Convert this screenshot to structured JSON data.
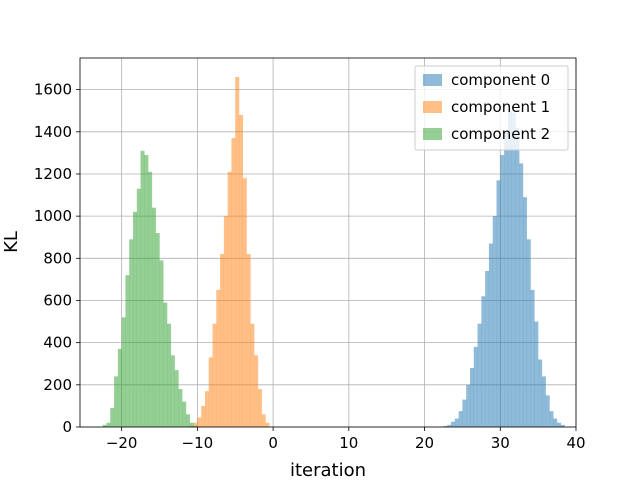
{
  "chart_data": {
    "type": "bar",
    "subtype": "histogram",
    "xlabel": "iteration",
    "ylabel": "KL",
    "xlim": [
      -25.5,
      40
    ],
    "ylim": [
      0,
      1750
    ],
    "xticks": [
      -20,
      -10,
      0,
      10,
      20,
      30,
      40
    ],
    "xtick_labels": [
      "−20",
      "−10",
      "0",
      "10",
      "20",
      "30",
      "40"
    ],
    "yticks": [
      0,
      200,
      400,
      600,
      800,
      1000,
      1200,
      1400,
      1600
    ],
    "ytick_labels": [
      "0",
      "200",
      "400",
      "600",
      "800",
      "1000",
      "1200",
      "1400",
      "1600"
    ],
    "grid": true,
    "legend": "top-right",
    "opacity": 0.5,
    "series": [
      {
        "name": "component 0",
        "color": "#1f77b4",
        "bin_start": 22.5,
        "bin_width": 0.5,
        "values": [
          5,
          10,
          25,
          40,
          75,
          130,
          200,
          280,
          380,
          490,
          620,
          740,
          870,
          1000,
          1170,
          1290,
          1400,
          1500,
          1490,
          1420,
          1250,
          1090,
          890,
          650,
          500,
          320,
          240,
          150,
          75,
          40,
          20,
          10
        ]
      },
      {
        "name": "component 1",
        "color": "#ff7f0e",
        "bin_start": -11,
        "bin_width": 0.5,
        "values": [
          5,
          20,
          45,
          100,
          170,
          330,
          490,
          650,
          820,
          1000,
          1210,
          1370,
          1660,
          1480,
          1180,
          820,
          490,
          340,
          180,
          60,
          20
        ]
      },
      {
        "name": "component 2",
        "color": "#2ca02c",
        "bin_start": -22.5,
        "bin_width": 0.5,
        "values": [
          10,
          20,
          90,
          240,
          370,
          520,
          720,
          890,
          1020,
          1130,
          1310,
          1290,
          1210,
          1040,
          920,
          790,
          590,
          490,
          340,
          270,
          180,
          120,
          60,
          20,
          5
        ]
      }
    ]
  }
}
